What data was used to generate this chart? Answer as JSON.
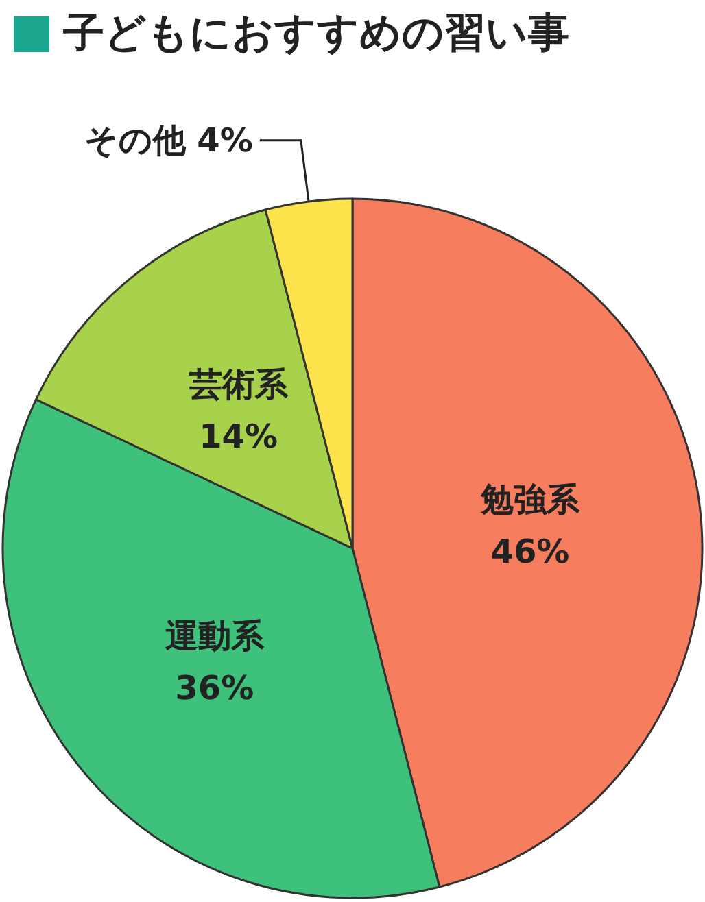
{
  "chart_data": {
    "type": "pie",
    "title": "子どもにおすすめの習い事",
    "categories": [
      "勉強系",
      "運動系",
      "芸術系",
      "その他"
    ],
    "values": [
      46,
      36,
      14,
      4
    ],
    "value_labels": [
      "46%",
      "36%",
      "14%",
      "4%"
    ],
    "colors": [
      "#f67d5e",
      "#3ec27b",
      "#a9d24c",
      "#fde44c"
    ],
    "legend": false
  }
}
